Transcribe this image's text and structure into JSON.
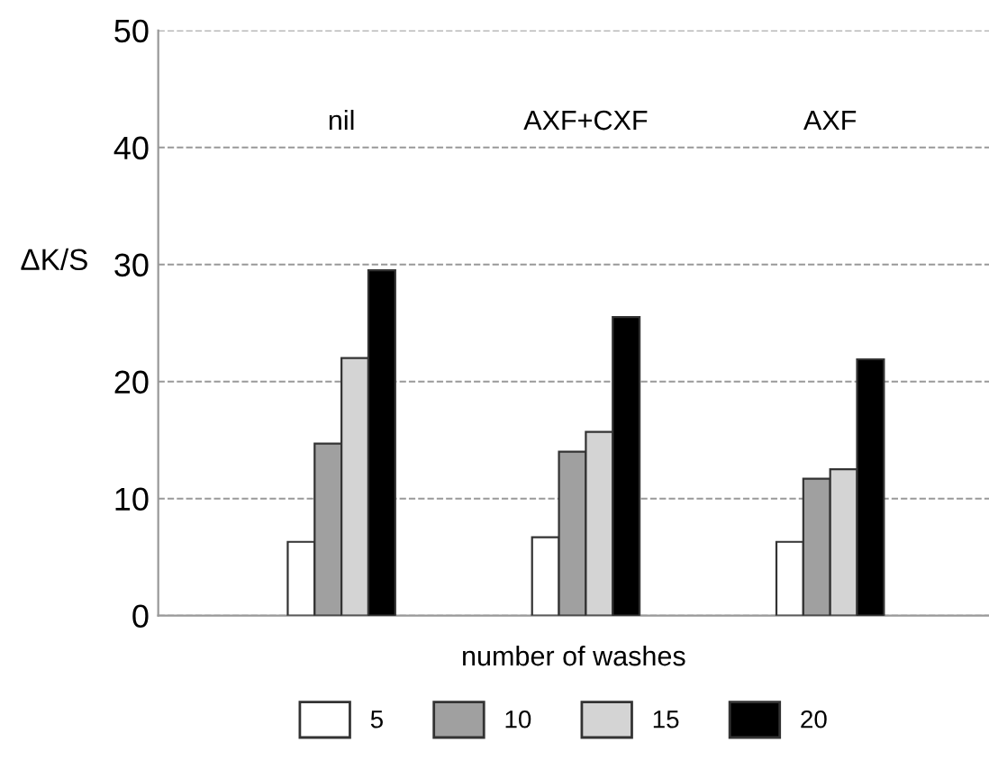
{
  "chart_data": {
    "type": "bar",
    "ylabel": "ΔK/S",
    "xlabel": "number of washes",
    "categories": [
      "nil",
      "AXF+CXF",
      "AXF"
    ],
    "series": [
      {
        "name": "5",
        "color": "#ffffff",
        "values": [
          6.3,
          6.7,
          6.3
        ]
      },
      {
        "name": "10",
        "color": "#a0a0a0",
        "values": [
          14.7,
          14.0,
          11.7
        ]
      },
      {
        "name": "15",
        "color": "#d4d4d4",
        "values": [
          22.0,
          15.7,
          12.5
        ]
      },
      {
        "name": "20",
        "color": "#000000",
        "values": [
          29.5,
          25.5,
          21.9
        ]
      }
    ],
    "ylim": [
      0,
      50
    ],
    "yticks": [
      0,
      10,
      20,
      30,
      40,
      50
    ],
    "grid": "y",
    "legend": "bottom"
  }
}
